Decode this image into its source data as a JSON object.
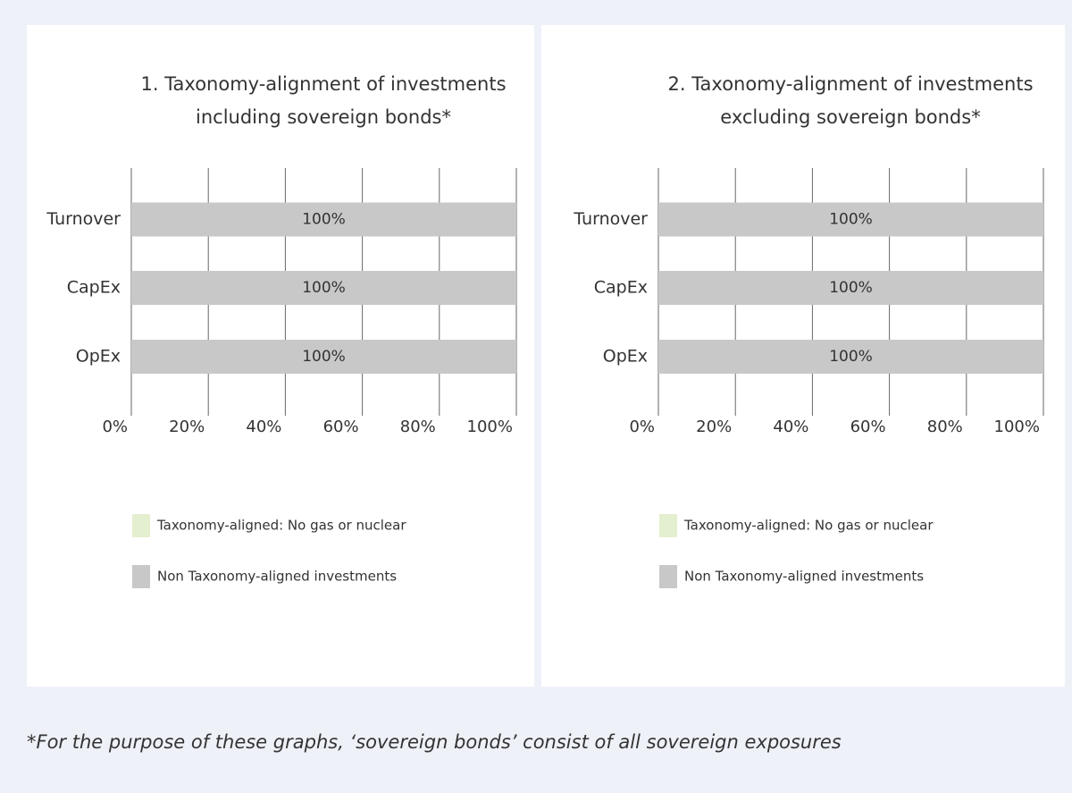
{
  "chart_data": [
    {
      "type": "bar",
      "orientation": "horizontal",
      "stacked": true,
      "title": "1. Taxonomy-alignment of investments including sovereign bonds*",
      "categories": [
        "Turnover",
        "CapEx",
        "OpEx"
      ],
      "series": [
        {
          "name": "Taxonomy-aligned: No gas or nuclear",
          "color": "#e4efcf",
          "values": [
            0,
            0,
            0
          ]
        },
        {
          "name": "Non Taxonomy-aligned investments",
          "color": "#c8c8c8",
          "values": [
            100,
            100,
            100
          ],
          "value_labels": [
            "100%",
            "100%",
            "100%"
          ]
        }
      ],
      "xlim": [
        0,
        100
      ],
      "xticks": [
        {
          "value": 0,
          "label": "0%"
        },
        {
          "value": 20,
          "label": "20%"
        },
        {
          "value": 40,
          "label": "40%"
        },
        {
          "value": 60,
          "label": "60%"
        },
        {
          "value": 80,
          "label": "80%"
        },
        {
          "value": 100,
          "label": "100%"
        }
      ],
      "grid": true
    },
    {
      "type": "bar",
      "orientation": "horizontal",
      "stacked": true,
      "title": "2. Taxonomy-alignment of investments excluding sovereign bonds*",
      "categories": [
        "Turnover",
        "CapEx",
        "OpEx"
      ],
      "series": [
        {
          "name": "Taxonomy-aligned: No gas or nuclear",
          "color": "#e4efcf",
          "values": [
            0,
            0,
            0
          ]
        },
        {
          "name": "Non Taxonomy-aligned investments",
          "color": "#c8c8c8",
          "values": [
            100,
            100,
            100
          ],
          "value_labels": [
            "100%",
            "100%",
            "100%"
          ]
        }
      ],
      "xlim": [
        0,
        100
      ],
      "xticks": [
        {
          "value": 0,
          "label": "0%"
        },
        {
          "value": 20,
          "label": "20%"
        },
        {
          "value": 40,
          "label": "40%"
        },
        {
          "value": 60,
          "label": "60%"
        },
        {
          "value": 80,
          "label": "80%"
        },
        {
          "value": 100,
          "label": "100%"
        }
      ],
      "grid": true
    }
  ],
  "footnote": "*For the purpose of these graphs, ‘sovereign bonds’ consist of all sovereign exposures"
}
